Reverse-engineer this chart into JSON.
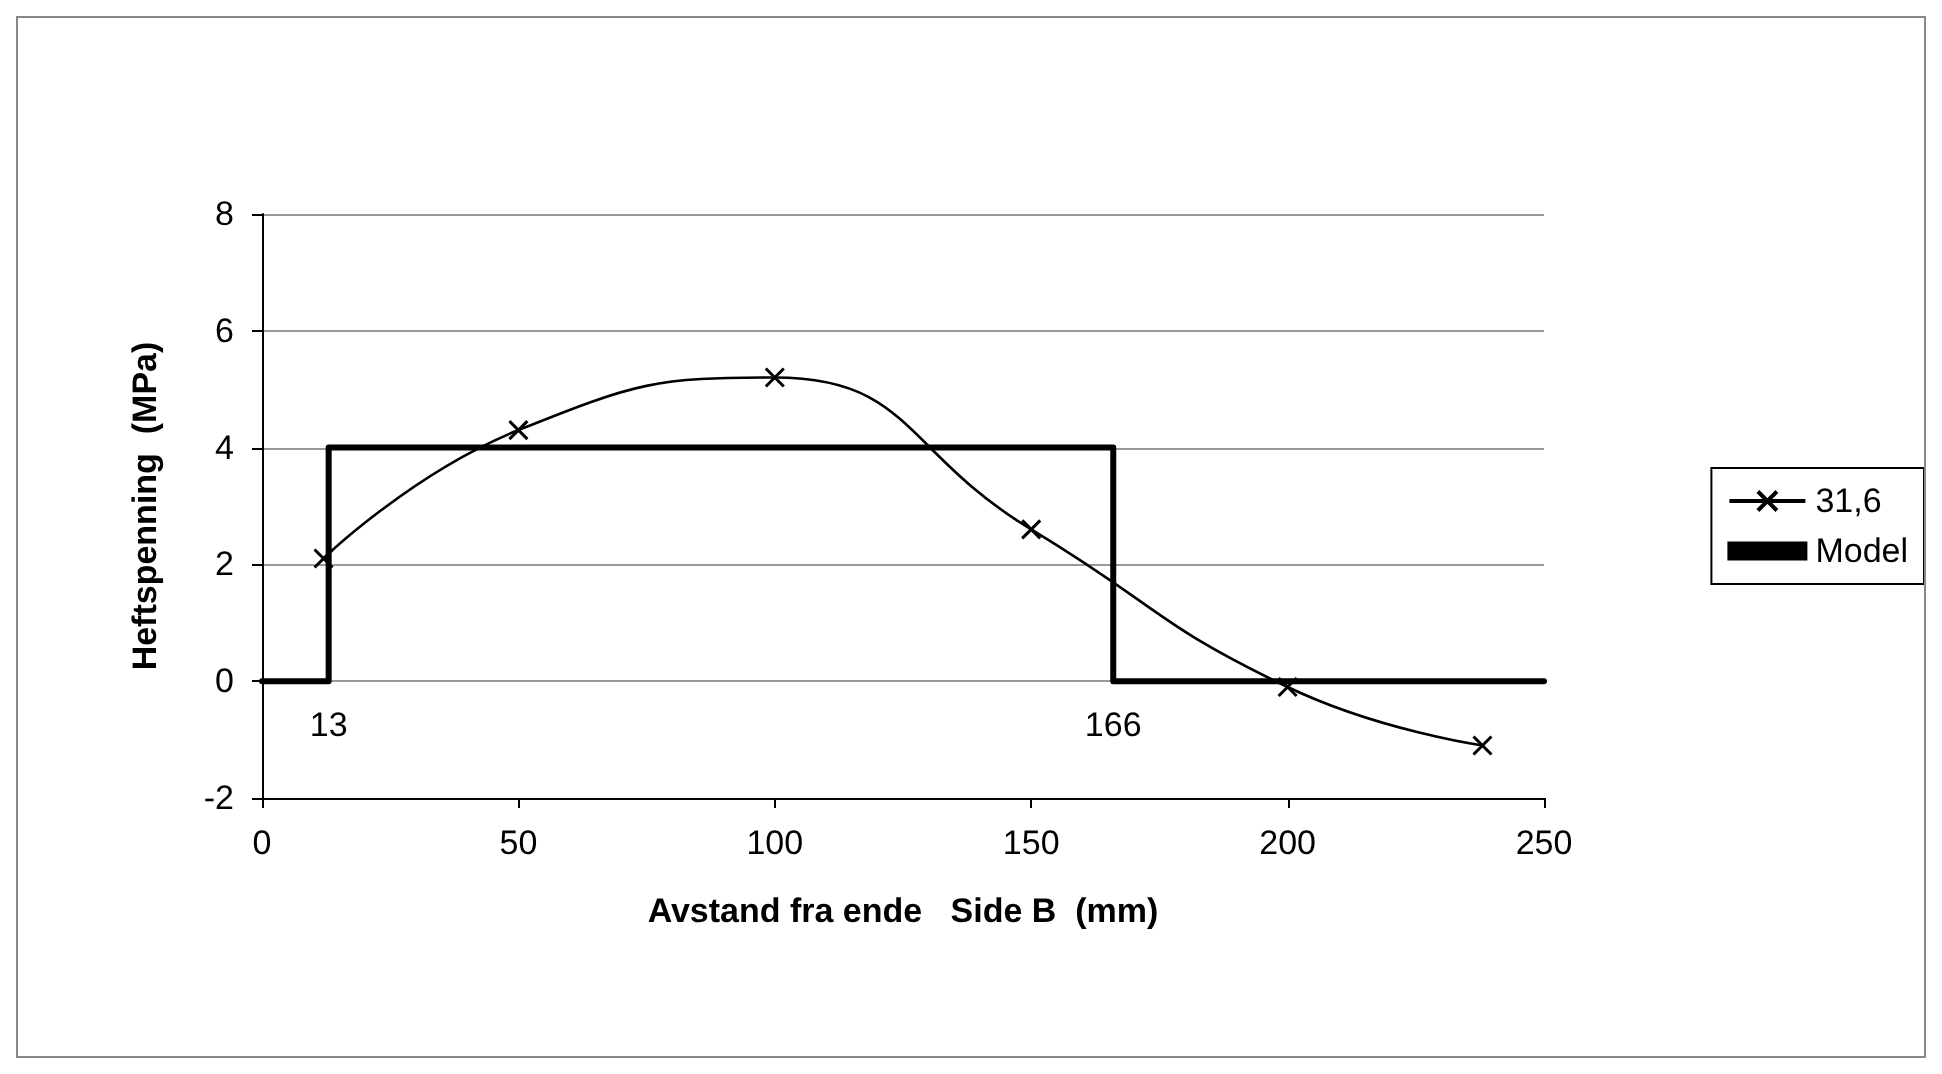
{
  "chart_data": {
    "type": "line",
    "xlabel": "Avstand fra ende   Side B  (mm)",
    "ylabel": "Heftspenning  (MPa)",
    "xlim": [
      0,
      250
    ],
    "xticks": [
      0,
      50,
      100,
      150,
      200,
      250
    ],
    "ylim": [
      -2,
      8
    ],
    "yticks": [
      -2,
      0,
      2,
      4,
      6,
      8
    ],
    "grid": "y",
    "legend": "right",
    "series": [
      {
        "name": "31,6",
        "color": "#000000",
        "marker": "cross",
        "x": [
          12,
          50,
          100,
          150,
          200,
          238
        ],
        "values": [
          2.1,
          4.3,
          5.2,
          2.6,
          -0.1,
          -1.1
        ]
      },
      {
        "name": "Model",
        "color": "#000000",
        "marker": "none",
        "x": [
          0,
          13,
          13,
          166,
          166,
          250
        ],
        "values": [
          0,
          0,
          4,
          4,
          0,
          0
        ]
      }
    ],
    "annotations": [
      {
        "text": "13",
        "x": 13,
        "y": 0
      },
      {
        "text": "166",
        "x": 166,
        "y": 0
      }
    ]
  }
}
